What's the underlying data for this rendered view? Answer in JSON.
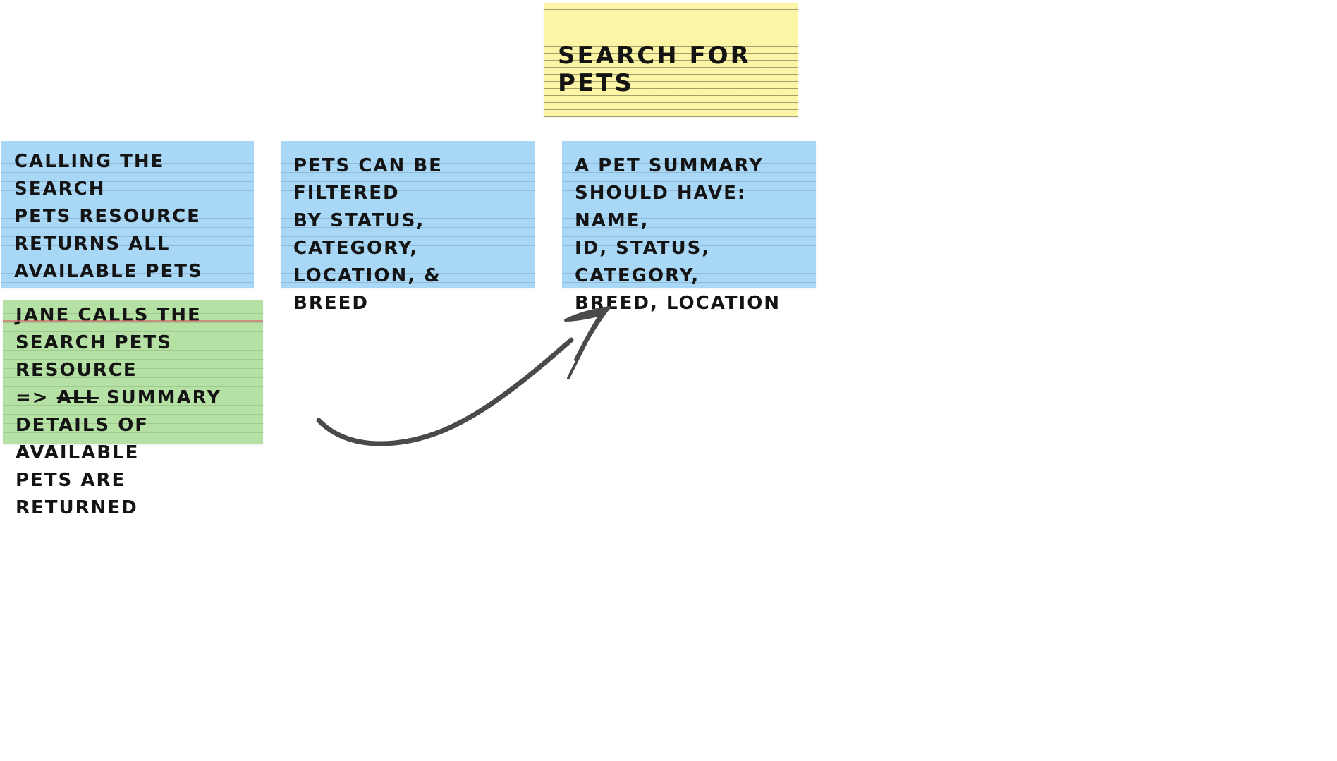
{
  "board": {
    "story_card": {
      "text": "SEARCH FOR PETS",
      "color": "#fbf5a5"
    },
    "rule_cards": [
      {
        "text": "CALLING THE SEARCH\nPETS RESOURCE\nRETURNS ALL\nAVAILABLE PETS",
        "color": "#a9d7f6"
      },
      {
        "text": "PETS CAN BE FILTERED\nBY STATUS, CATEGORY,\nLOCATION, & BREED",
        "color": "#a9d7f6"
      },
      {
        "text": "A PET SUMMARY\nSHOULD HAVE: NAME,\nID, STATUS, CATEGORY,\nBREED, LOCATION",
        "color": "#a9d7f6"
      }
    ],
    "example_cards": [
      {
        "line1": "JANE CALLS THE",
        "line2": "SEARCH PETS RESOURCE",
        "line3_prefix": "=> ",
        "line3_strike": "ALL",
        "line3_suffix": " SUMMARY",
        "line4": "DETAILS OF  AVAILABLE",
        "line5": "PETS ARE RETURNED",
        "color": "#b6e1a4"
      }
    ],
    "connector": {
      "from": "example_cards.0",
      "to": "rule_cards.2",
      "color": "#4a4a4a"
    }
  }
}
